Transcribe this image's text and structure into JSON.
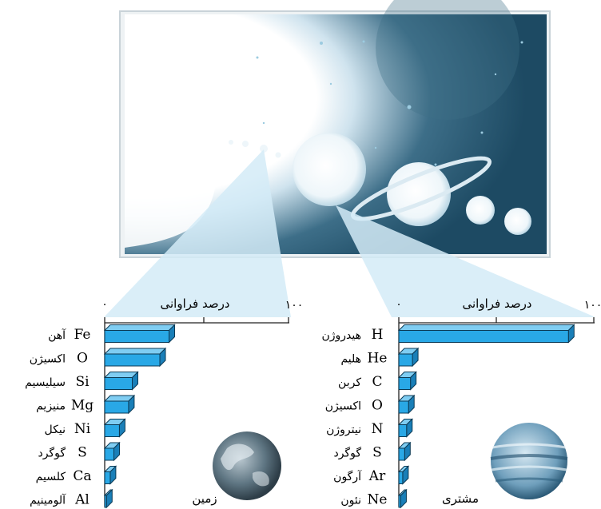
{
  "chart_data": [
    {
      "type": "bar",
      "orientation": "horizontal",
      "title": "زمین",
      "xlabel": "درصد فراوانی",
      "xlim": [
        0,
        100
      ],
      "tick_labels": [
        "۰",
        "۱۰۰"
      ],
      "categories": [
        {
          "symbol": "Fe",
          "name": "آهن"
        },
        {
          "symbol": "O",
          "name": "اکسیژن"
        },
        {
          "symbol": "Si",
          "name": "سیلیسیم"
        },
        {
          "symbol": "Mg",
          "name": "منیزیم"
        },
        {
          "symbol": "Ni",
          "name": "نیکل"
        },
        {
          "symbol": "S",
          "name": "گوگرد"
        },
        {
          "symbol": "Ca",
          "name": "کلسیم"
        },
        {
          "symbol": "Al",
          "name": "آلومینیم"
        }
      ],
      "values": [
        35,
        30,
        15,
        13,
        8,
        5,
        3,
        1
      ]
    },
    {
      "type": "bar",
      "orientation": "horizontal",
      "title": "مشتری",
      "xlabel": "درصد فراوانی",
      "xlim": [
        0,
        100
      ],
      "tick_labels": [
        "۰",
        "۱۰۰"
      ],
      "categories": [
        {
          "symbol": "H",
          "name": "هیدروژن"
        },
        {
          "symbol": "He",
          "name": "هلیم"
        },
        {
          "symbol": "C",
          "name": "کربن"
        },
        {
          "symbol": "O",
          "name": "اکسیژن"
        },
        {
          "symbol": "N",
          "name": "نیتروژن"
        },
        {
          "symbol": "S",
          "name": "گوگرد"
        },
        {
          "symbol": "Ar",
          "name": "آرگون"
        },
        {
          "symbol": "Ne",
          "name": "نئون"
        }
      ],
      "values": [
        87,
        7,
        6,
        5,
        4,
        3,
        2,
        1
      ]
    }
  ],
  "colors": {
    "bar_front": "#29a8e6",
    "bar_top": "#7fcdf2",
    "bar_side": "#1a7fb8",
    "callout": "#d4ebf7",
    "space": "#1d4a63"
  }
}
